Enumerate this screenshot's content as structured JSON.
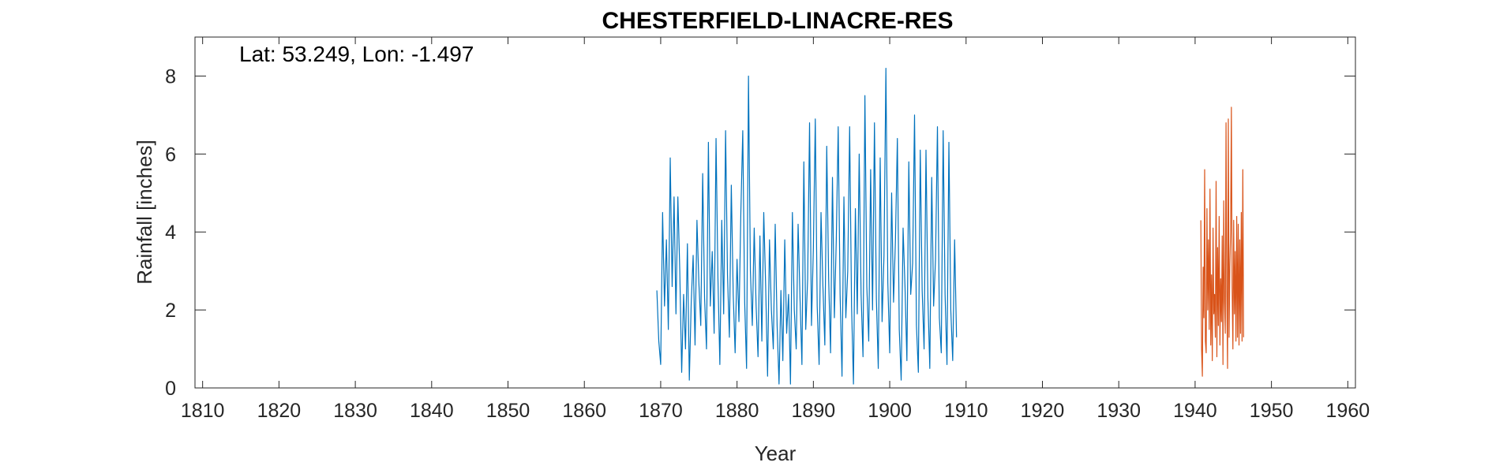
{
  "chart_data": {
    "type": "line",
    "title": "CHESTERFIELD-LINACRE-RES",
    "xlabel": "Year",
    "ylabel": "Rainfall [inches]",
    "annotation": "Lat: 53.249, Lon: -1.497",
    "xlim": [
      1809,
      1961
    ],
    "ylim": [
      0,
      9
    ],
    "x_ticks": [
      1810,
      1820,
      1830,
      1840,
      1850,
      1860,
      1870,
      1880,
      1890,
      1900,
      1910,
      1920,
      1930,
      1940,
      1950,
      1960
    ],
    "y_ticks": [
      0,
      2,
      4,
      6,
      8
    ],
    "grid": false,
    "series_note": "monthly rainfall; two overlapping series",
    "series": [
      {
        "color": "#0072BD",
        "x_start": 1869.5,
        "step": 0.25,
        "values": [
          2.5,
          1.2,
          0.6,
          4.5,
          2.1,
          3.8,
          1.5,
          5.9,
          2.6,
          4.9,
          1.9,
          4.9,
          3.0,
          0.4,
          2.4,
          1.0,
          3.7,
          0.2,
          2.2,
          3.4,
          1.1,
          4.3,
          2.7,
          1.6,
          5.5,
          2.3,
          1.0,
          6.3,
          2.1,
          3.5,
          1.4,
          6.4,
          2.8,
          0.6,
          4.3,
          1.9,
          6.6,
          2.9,
          1.3,
          5.2,
          2.4,
          0.9,
          3.3,
          1.7,
          4.5,
          6.6,
          2.2,
          0.5,
          8.0,
          3.0,
          1.6,
          4.1,
          2.1,
          0.8,
          3.9,
          1.2,
          4.5,
          2.6,
          0.3,
          3.8,
          2.0,
          1.0,
          4.2,
          1.6,
          0.1,
          2.5,
          0.7,
          3.8,
          1.4,
          2.4,
          0.1,
          4.5,
          2.0,
          1.0,
          4.2,
          2.3,
          0.6,
          5.8,
          1.5,
          2.8,
          6.8,
          1.6,
          3.6,
          6.9,
          2.1,
          0.6,
          4.5,
          2.6,
          1.1,
          6.2,
          2.8,
          0.9,
          5.4,
          1.8,
          3.8,
          6.7,
          2.4,
          0.3,
          4.9,
          1.8,
          3.0,
          6.7,
          2.1,
          0.1,
          4.6,
          1.9,
          6.0,
          2.4,
          0.8,
          7.5,
          2.6,
          1.2,
          5.6,
          2.0,
          6.8,
          2.3,
          0.5,
          5.9,
          1.7,
          3.4,
          8.2,
          2.7,
          0.9,
          5.0,
          2.2,
          3.8,
          6.4,
          1.5,
          0.2,
          4.1,
          2.6,
          0.7,
          5.8,
          2.4,
          3.2,
          7.0,
          1.6,
          0.4,
          6.1,
          2.5,
          1.0,
          6.1,
          2.3,
          0.5,
          5.4,
          2.1,
          3.3,
          6.7,
          1.8,
          0.9,
          6.6,
          2.4,
          0.6,
          6.3,
          2.0,
          0.7,
          3.8,
          1.3
        ]
      },
      {
        "color": "#D95319",
        "x_start": 1940.75,
        "step": 0.1,
        "values": [
          4.3,
          1.0,
          0.3,
          3.1,
          1.8,
          5.6,
          1.2,
          0.9,
          4.6,
          2.0,
          3.8,
          1.5,
          5.1,
          1.1,
          2.9,
          0.7,
          4.1,
          1.9,
          2.4,
          1.3,
          5.3,
          0.8,
          3.6,
          1.6,
          4.4,
          1.1,
          2.8,
          1.7,
          3.9,
          0.6,
          4.8,
          2.2,
          1.4,
          6.8,
          2.5,
          0.5,
          6.9,
          1.3,
          3.1,
          4.0,
          7.2,
          2.6,
          1.0,
          4.3,
          1.9,
          3.5,
          1.2,
          4.4,
          1.3,
          4.2,
          1.1,
          3.8,
          1.4,
          4.5,
          1.2,
          5.6,
          1.3
        ]
      }
    ]
  }
}
